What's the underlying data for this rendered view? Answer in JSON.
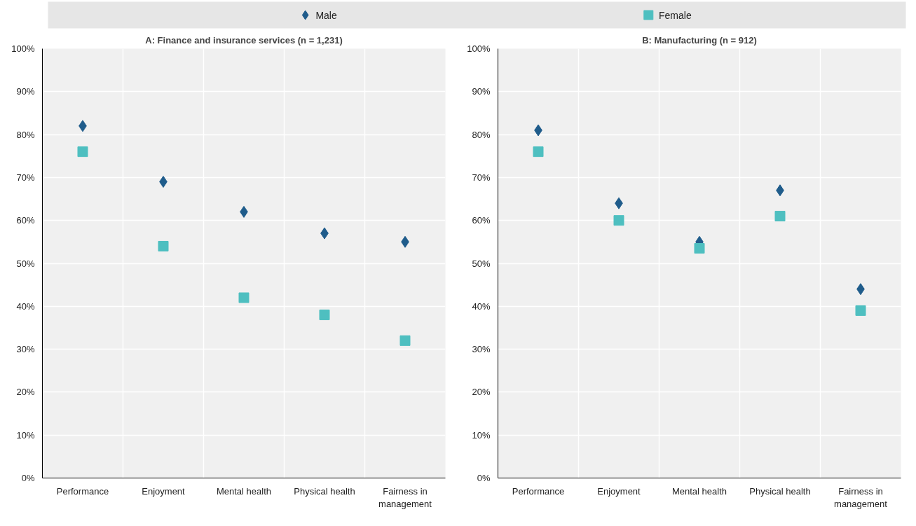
{
  "chart_data": [
    {
      "type": "scatter",
      "title": "A: Finance and insurance services (n = 1,231)",
      "categories": [
        "Performance",
        "Enjoyment",
        "Mental health",
        "Physical health",
        "Fairness in management"
      ],
      "series": [
        {
          "name": "Male",
          "color": "#1f5c8b",
          "marker": "diamond",
          "values": [
            82,
            69,
            62,
            57,
            55
          ]
        },
        {
          "name": "Female",
          "color": "#4ebfc0",
          "marker": "square",
          "values": [
            76,
            54,
            42,
            38,
            32
          ]
        }
      ],
      "ylim": [
        0,
        100
      ],
      "yticks": [
        {
          "value": 0,
          "label": "0%"
        },
        {
          "value": 10,
          "label": "10%"
        },
        {
          "value": 20,
          "label": "20%"
        },
        {
          "value": 30,
          "label": "30%"
        },
        {
          "value": 40,
          "label": "40%"
        },
        {
          "value": 50,
          "label": "50%"
        },
        {
          "value": 60,
          "label": "60%"
        },
        {
          "value": 70,
          "label": "70%"
        },
        {
          "value": 80,
          "label": "80%"
        },
        {
          "value": 90,
          "label": "90%"
        },
        {
          "value": 100,
          "label": "100%"
        }
      ],
      "grid": true,
      "legend": "top"
    },
    {
      "type": "scatter",
      "title": "B: Manufacturing (n = 912)",
      "categories": [
        "Performance",
        "Enjoyment",
        "Mental health",
        "Physical health",
        "Fairness in management"
      ],
      "series": [
        {
          "name": "Male",
          "color": "#1f5c8b",
          "marker": "diamond",
          "values": [
            81,
            64,
            55,
            67,
            44
          ]
        },
        {
          "name": "Female",
          "color": "#4ebfc0",
          "marker": "square",
          "values": [
            76,
            60,
            53.5,
            61,
            39
          ]
        }
      ],
      "ylim": [
        0,
        100
      ],
      "yticks": [
        {
          "value": 0,
          "label": "0%"
        },
        {
          "value": 10,
          "label": "10%"
        },
        {
          "value": 20,
          "label": "20%"
        },
        {
          "value": 30,
          "label": "30%"
        },
        {
          "value": 40,
          "label": "40%"
        },
        {
          "value": 50,
          "label": "50%"
        },
        {
          "value": 60,
          "label": "60%"
        },
        {
          "value": 70,
          "label": "70%"
        },
        {
          "value": 80,
          "label": "80%"
        },
        {
          "value": 90,
          "label": "90%"
        },
        {
          "value": 100,
          "label": "100%"
        }
      ],
      "grid": true,
      "legend": "top"
    }
  ]
}
